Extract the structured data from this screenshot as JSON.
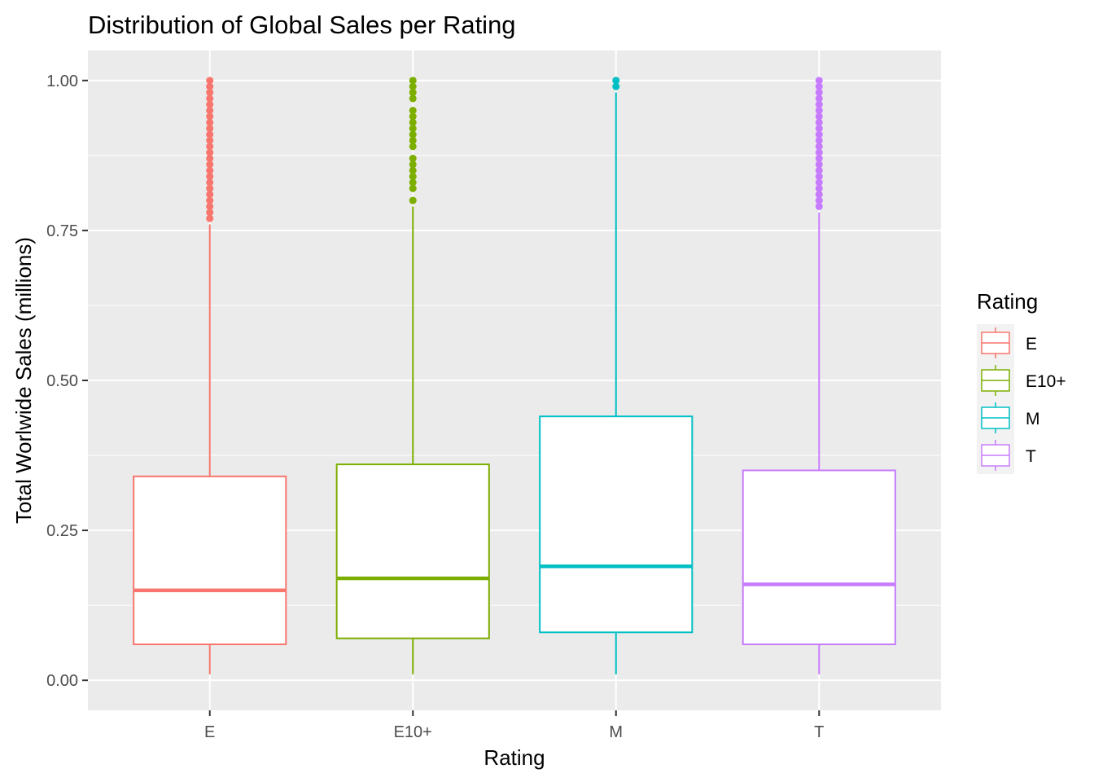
{
  "chart_data": {
    "type": "boxplot",
    "title": "Distribution of Global Sales per Rating",
    "xlabel": "Rating",
    "ylabel": "Total Worlwide Sales (millions)",
    "ylim": [
      -0.05,
      1.05
    ],
    "y_ticks": [
      0.0,
      0.25,
      0.5,
      0.75,
      1.0
    ],
    "y_tick_labels": [
      "0.00",
      "0.25",
      "0.50",
      "0.75",
      "1.00"
    ],
    "grid": true,
    "categories": [
      "E",
      "E10+",
      "M",
      "T"
    ],
    "colors": [
      "#F8766D",
      "#7CAE00",
      "#00BFC4",
      "#C77CFF"
    ],
    "boxes": [
      {
        "category": "E",
        "whisker_low": 0.01,
        "q1": 0.06,
        "median": 0.15,
        "q3": 0.34,
        "whisker_high": 0.76,
        "outliers": [
          0.77,
          0.78,
          0.79,
          0.8,
          0.81,
          0.82,
          0.83,
          0.84,
          0.85,
          0.86,
          0.87,
          0.88,
          0.89,
          0.9,
          0.91,
          0.92,
          0.93,
          0.94,
          0.95,
          0.96,
          0.97,
          0.98,
          0.99,
          1.0
        ]
      },
      {
        "category": "E10+",
        "whisker_low": 0.01,
        "q1": 0.07,
        "median": 0.17,
        "q3": 0.36,
        "whisker_high": 0.79,
        "outliers": [
          0.8,
          0.82,
          0.83,
          0.84,
          0.85,
          0.86,
          0.87,
          0.89,
          0.9,
          0.91,
          0.92,
          0.93,
          0.94,
          0.95,
          0.97,
          0.98,
          0.99,
          1.0
        ]
      },
      {
        "category": "M",
        "whisker_low": 0.01,
        "q1": 0.08,
        "median": 0.19,
        "q3": 0.44,
        "whisker_high": 0.98,
        "outliers": [
          0.99,
          1.0
        ]
      },
      {
        "category": "T",
        "whisker_low": 0.01,
        "q1": 0.06,
        "median": 0.16,
        "q3": 0.35,
        "whisker_high": 0.78,
        "outliers": [
          0.79,
          0.8,
          0.81,
          0.82,
          0.83,
          0.84,
          0.85,
          0.86,
          0.87,
          0.88,
          0.89,
          0.9,
          0.91,
          0.92,
          0.93,
          0.94,
          0.95,
          0.96,
          0.97,
          0.98,
          0.99,
          1.0
        ]
      }
    ],
    "legend": {
      "title": "Rating",
      "placement": "right",
      "entries": [
        "E",
        "E10+",
        "M",
        "T"
      ]
    }
  }
}
